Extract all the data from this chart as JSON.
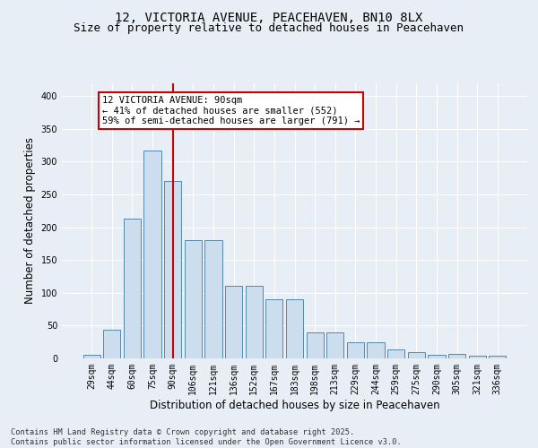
{
  "title_line1": "12, VICTORIA AVENUE, PEACEHAVEN, BN10 8LX",
  "title_line2": "Size of property relative to detached houses in Peacehaven",
  "xlabel": "Distribution of detached houses by size in Peacehaven",
  "ylabel": "Number of detached properties",
  "categories": [
    "29sqm",
    "44sqm",
    "60sqm",
    "75sqm",
    "90sqm",
    "106sqm",
    "121sqm",
    "136sqm",
    "152sqm",
    "167sqm",
    "183sqm",
    "198sqm",
    "213sqm",
    "229sqm",
    "244sqm",
    "259sqm",
    "275sqm",
    "290sqm",
    "305sqm",
    "321sqm",
    "336sqm"
  ],
  "values": [
    5,
    44,
    213,
    317,
    271,
    180,
    180,
    110,
    110,
    90,
    90,
    40,
    40,
    24,
    25,
    13,
    10,
    5,
    7,
    4,
    4
  ],
  "bar_color": "#ccdded",
  "bar_edge_color": "#5588aa",
  "vline_color": "#cc0000",
  "annotation_text": "12 VICTORIA AVENUE: 90sqm\n← 41% of detached houses are smaller (552)\n59% of semi-detached houses are larger (791) →",
  "annotation_box_color": "#ffffff",
  "annotation_box_edge_color": "#cc0000",
  "ylim": [
    0,
    420
  ],
  "yticks": [
    0,
    50,
    100,
    150,
    200,
    250,
    300,
    350,
    400
  ],
  "background_color": "#e8eef5",
  "grid_color": "#ffffff",
  "footer_text": "Contains HM Land Registry data © Crown copyright and database right 2025.\nContains public sector information licensed under the Open Government Licence v3.0.",
  "title_fontsize": 10,
  "subtitle_fontsize": 9,
  "axis_label_fontsize": 8.5,
  "tick_fontsize": 7,
  "ann_fontsize": 7.5
}
